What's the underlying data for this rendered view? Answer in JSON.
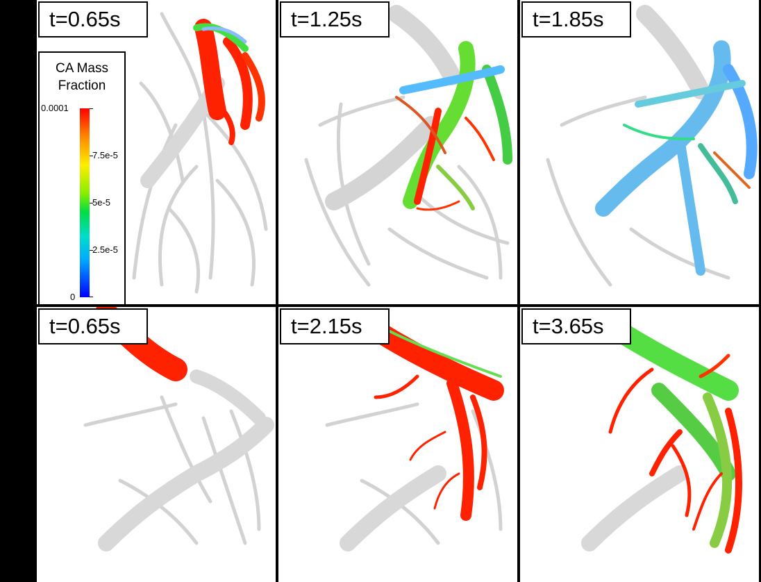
{
  "panels": [
    {
      "time_label": "t=0.65s"
    },
    {
      "time_label": "t=1.25s"
    },
    {
      "time_label": "t=1.85s"
    },
    {
      "time_label": "t=0.65s"
    },
    {
      "time_label": "t=2.15s"
    },
    {
      "time_label": "t=3.65s"
    }
  ],
  "legend": {
    "title_line1": "CA Mass",
    "title_line2": "Fraction",
    "ticks": [
      "0.0001",
      "7.5e-5",
      "5e-5",
      "2.5e-5",
      "0"
    ]
  },
  "colors": {
    "vessel_gray": "#c8c8c8",
    "high": "#ff2200",
    "mid": "#44dd22",
    "low": "#55aaff"
  }
}
